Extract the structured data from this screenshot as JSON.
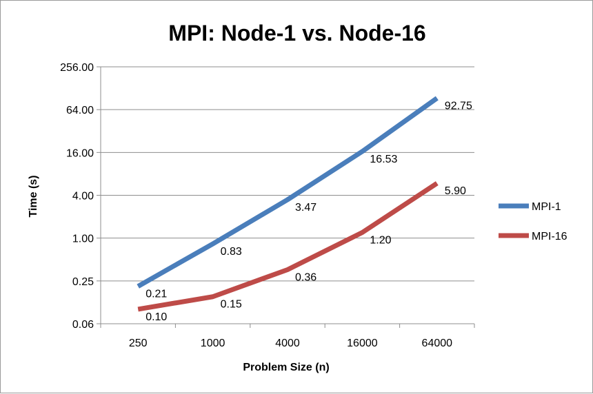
{
  "chart_data": {
    "type": "line",
    "title": "MPI: Node-1 vs. Node-16",
    "xlabel": "Problem Size (n)",
    "ylabel": "Time (s)",
    "categories": [
      "250",
      "1000",
      "4000",
      "16000",
      "64000"
    ],
    "y_scale": "log2",
    "ylim": [
      0.0625,
      256
    ],
    "y_ticks": [
      0.0625,
      0.25,
      1,
      4,
      16,
      64,
      256
    ],
    "y_tick_labels": [
      "0.06",
      "0.25",
      "1.00",
      "4.00",
      "16.00",
      "64.00",
      "256.00"
    ],
    "grid": true,
    "legend": "right",
    "series": [
      {
        "name": "MPI-1",
        "color": "#4a7ebb",
        "values": [
          0.21,
          0.83,
          3.47,
          16.53,
          92.75
        ],
        "labels": [
          "0.21",
          "0.83",
          "3.47",
          "16.53",
          "92.75"
        ]
      },
      {
        "name": "MPI-16",
        "color": "#be4b48",
        "values": [
          0.1,
          0.15,
          0.36,
          1.2,
          5.9
        ],
        "labels": [
          "0.10",
          "0.15",
          "0.36",
          "1.20",
          "5.90"
        ]
      }
    ]
  }
}
